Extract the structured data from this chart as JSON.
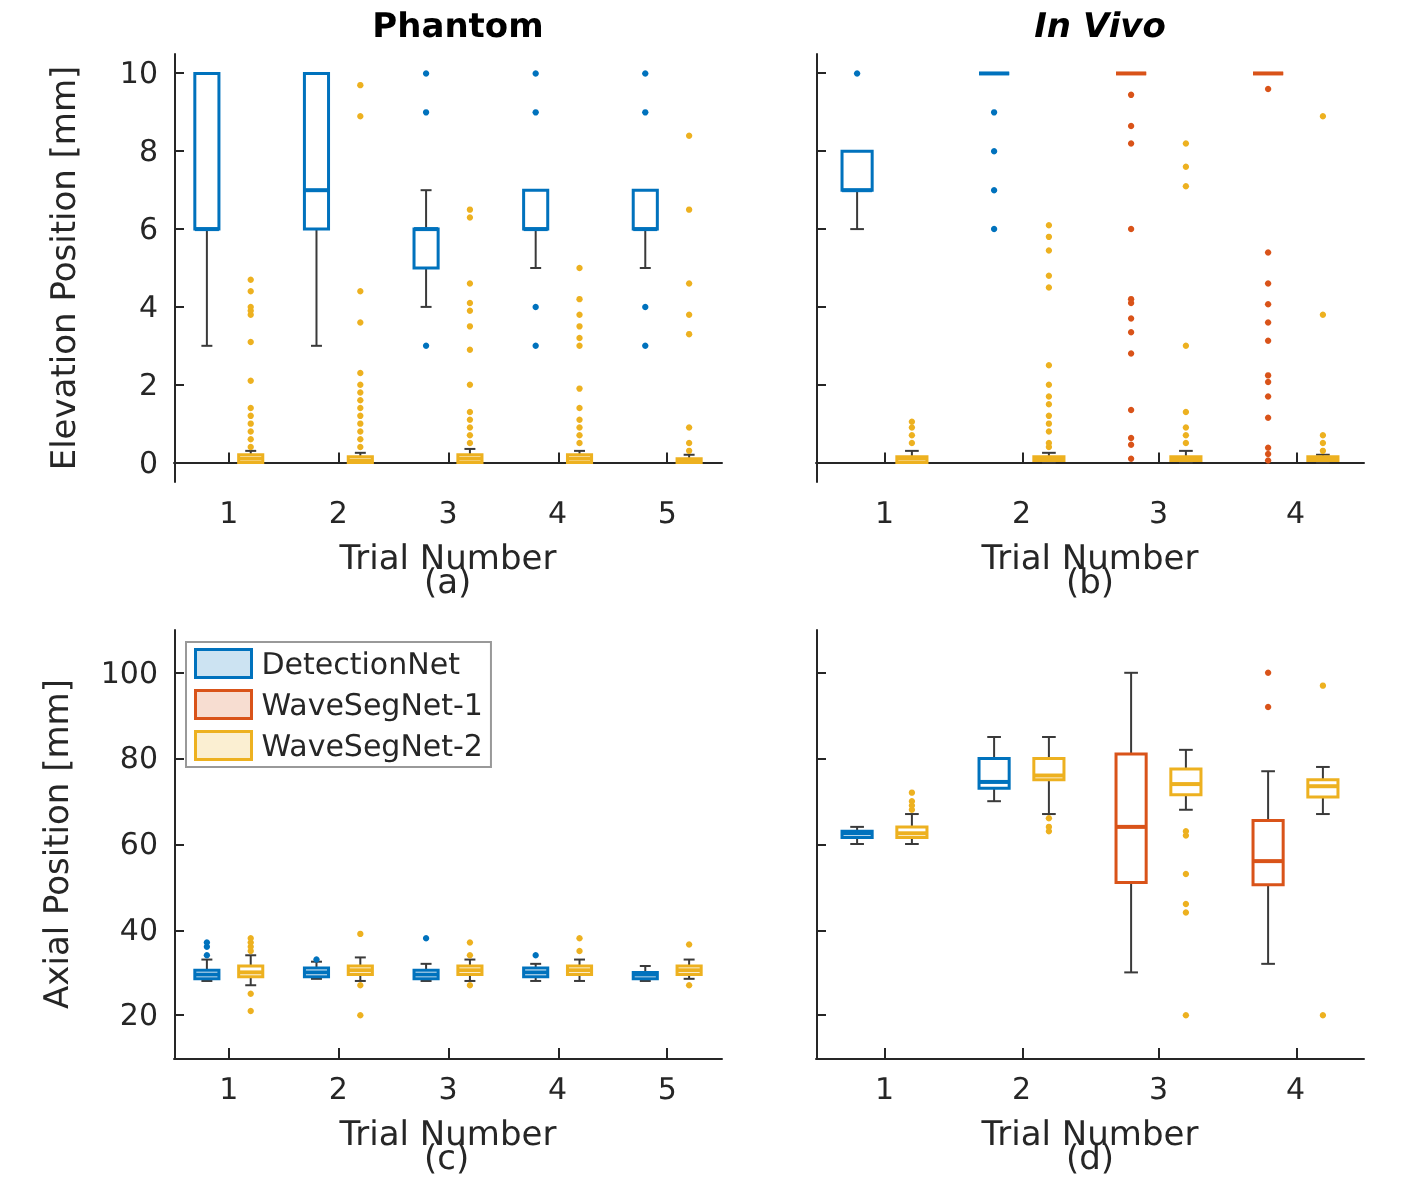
{
  "chart_data": [
    {
      "type": "box",
      "title": "Phantom",
      "xlabel": "Trial Number",
      "ylabel": "Elevation Position [mm]",
      "annotations": [
        "(a)"
      ],
      "categories": [
        "1",
        "2",
        "3",
        "4",
        "5"
      ],
      "ylim": [
        -0.5,
        10.5
      ],
      "yticks": [
        0,
        2,
        4,
        6,
        8,
        10
      ],
      "series": [
        {
          "color": "#0072bd",
          "boxes": [
            {
              "low": 3,
              "q1": 6,
              "median": 6,
              "q3": 10,
              "high": 10
            },
            {
              "low": 3,
              "q1": 6,
              "median": 7,
              "q3": 10,
              "high": 10
            },
            {
              "low": 4,
              "q1": 5,
              "median": 6,
              "q3": 6,
              "high": 7,
              "outliers": [
                3,
                9,
                10
              ]
            },
            {
              "low": 5,
              "q1": 6,
              "median": 6,
              "q3": 7,
              "high": 7,
              "outliers": [
                3,
                4,
                9,
                10
              ]
            },
            {
              "low": 5,
              "q1": 6,
              "median": 6,
              "q3": 7,
              "high": 7,
              "outliers": [
                3,
                4,
                9,
                10
              ]
            }
          ]
        },
        {
          "color": "#edb120",
          "boxes": [
            {
              "low": 0,
              "q1": 0,
              "median": 0.1,
              "q3": 0.2,
              "high": 0.3,
              "outliers": [
                0.4,
                0.6,
                0.8,
                1.0,
                1.2,
                1.4,
                2.1,
                3.1,
                3.8,
                3.9,
                4.0,
                4.4,
                4.7
              ]
            },
            {
              "low": 0,
              "q1": 0,
              "median": 0.05,
              "q3": 0.15,
              "high": 0.25,
              "outliers": [
                0.4,
                0.6,
                0.8,
                1.0,
                1.2,
                1.4,
                1.6,
                1.8,
                2.0,
                2.3,
                3.6,
                4.4,
                8.9,
                9.7
              ]
            },
            {
              "low": 0,
              "q1": 0,
              "median": 0.1,
              "q3": 0.2,
              "high": 0.35,
              "outliers": [
                0.5,
                0.7,
                0.9,
                1.1,
                1.3,
                2.0,
                2.9,
                3.5,
                3.9,
                4.1,
                4.6,
                6.3,
                6.5
              ]
            },
            {
              "low": 0,
              "q1": 0,
              "median": 0.1,
              "q3": 0.2,
              "high": 0.3,
              "outliers": [
                0.5,
                0.7,
                0.9,
                1.1,
                1.4,
                1.9,
                3.0,
                3.2,
                3.5,
                3.8,
                4.2,
                5.0
              ]
            },
            {
              "low": 0,
              "q1": 0,
              "median": 0.05,
              "q3": 0.1,
              "high": 0.2,
              "outliers": [
                0.3,
                0.5,
                0.9,
                3.3,
                3.8,
                4.6,
                6.5,
                8.4
              ]
            }
          ]
        }
      ]
    },
    {
      "type": "box",
      "title": "In Vivo",
      "xlabel": "Trial Number",
      "annotations": [
        "(b)"
      ],
      "categories": [
        "1",
        "2",
        "3",
        "4"
      ],
      "ylim": [
        -0.5,
        10.5
      ],
      "yticks": [
        0,
        2,
        4,
        6,
        8,
        10
      ],
      "tick_labels": "x",
      "series": [
        {
          "color": "#0072bd",
          "boxes": [
            {
              "low": 6,
              "q1": 7,
              "median": 7,
              "q3": 8,
              "high": 8,
              "outliers": [
                10
              ]
            },
            {
              "low": 10,
              "q1": 10,
              "median": 10,
              "q3": 10,
              "high": 10,
              "outliers": [
                6,
                7,
                8,
                9
              ]
            },
            null,
            null
          ]
        },
        {
          "color": "#d95319",
          "boxes": [
            null,
            null,
            {
              "low": 10,
              "q1": 10,
              "median": 10,
              "q3": 10,
              "high": 10,
              "outliers": [
                0.1,
                0.46,
                0.63,
                1.35,
                2.8,
                3.35,
                3.7,
                4.1,
                4.2,
                6.0,
                8.2,
                8.65,
                9.45
              ]
            },
            {
              "low": 10,
              "q1": 10,
              "median": 10,
              "q3": 10,
              "high": 10,
              "outliers": [
                0.05,
                0.22,
                0.38,
                1.15,
                1.7,
                2.07,
                2.24,
                3.13,
                3.6,
                4.07,
                4.6,
                5.4,
                9.6
              ]
            }
          ]
        },
        {
          "color": "#edb120",
          "boxes": [
            {
              "low": 0,
              "q1": 0,
              "median": 0.1,
              "q3": 0.15,
              "high": 0.3,
              "outliers": [
                0.5,
                0.7,
                0.9,
                1.05
              ]
            },
            {
              "low": 0,
              "q1": 0.05,
              "median": 0.1,
              "q3": 0.15,
              "high": 0.25,
              "outliers": [
                0.4,
                0.5,
                0.8,
                1.0,
                1.2,
                1.5,
                1.7,
                2.0,
                2.5,
                4.5,
                4.8,
                5.45,
                5.8,
                6.1
              ]
            },
            {
              "low": 0,
              "q1": 0.05,
              "median": 0.1,
              "q3": 0.15,
              "high": 0.3,
              "outliers": [
                0.5,
                0.7,
                0.9,
                1.3,
                3.0,
                7.1,
                7.6,
                8.2
              ]
            },
            {
              "low": 0,
              "q1": 0.05,
              "median": 0.1,
              "q3": 0.15,
              "high": 0.2,
              "outliers": [
                0.3,
                0.5,
                0.7,
                3.8,
                8.9
              ]
            }
          ]
        }
      ]
    },
    {
      "type": "box",
      "xlabel": "Trial Number",
      "ylabel": "Axial Position [mm]",
      "annotations": [
        "(c)"
      ],
      "categories": [
        "1",
        "2",
        "3",
        "4",
        "5"
      ],
      "ylim": [
        10,
        110
      ],
      "yticks": [
        20,
        40,
        60,
        80,
        100
      ],
      "legend": "top left",
      "series": [
        {
          "name": "DetectionNet",
          "color": "#0072bd",
          "boxes": [
            {
              "low": 28,
              "q1": 28.5,
              "median": 29.5,
              "q3": 30.5,
              "high": 33,
              "outliers": [
                34,
                36,
                37
              ]
            },
            {
              "low": 28.5,
              "q1": 29,
              "median": 30,
              "q3": 31,
              "high": 32.5,
              "outliers": [
                33
              ]
            },
            {
              "low": 28,
              "q1": 28.5,
              "median": 29.5,
              "q3": 30.5,
              "high": 32,
              "outliers": [
                38
              ]
            },
            {
              "low": 28,
              "q1": 29,
              "median": 30,
              "q3": 31,
              "high": 32,
              "outliers": [
                34
              ]
            },
            {
              "low": 28,
              "q1": 28.5,
              "median": 29.5,
              "q3": 30,
              "high": 31.5
            }
          ]
        },
        {
          "name": "WaveSegNet-1",
          "color": "#d95319",
          "boxes": [
            null,
            null,
            null,
            null,
            null
          ]
        },
        {
          "name": "WaveSegNet-2",
          "color": "#edb120",
          "boxes": [
            {
              "low": 27,
              "q1": 29,
              "median": 30,
              "q3": 31.5,
              "high": 34,
              "outliers": [
                21,
                25,
                35,
                36,
                37,
                38
              ]
            },
            {
              "low": 28,
              "q1": 29.5,
              "median": 30.5,
              "q3": 31.5,
              "high": 33.5,
              "outliers": [
                20,
                27,
                39
              ]
            },
            {
              "low": 28,
              "q1": 29.5,
              "median": 30.5,
              "q3": 31.5,
              "high": 33,
              "outliers": [
                27,
                34,
                37
              ]
            },
            {
              "low": 28,
              "q1": 29.5,
              "median": 30.5,
              "q3": 31.5,
              "high": 33,
              "outliers": [
                35,
                38
              ]
            },
            {
              "low": 28.5,
              "q1": 29.5,
              "median": 30.5,
              "q3": 31.5,
              "high": 33,
              "outliers": [
                27,
                36.5
              ]
            }
          ]
        }
      ]
    },
    {
      "type": "box",
      "xlabel": "Trial Number",
      "annotations": [
        "(d)"
      ],
      "categories": [
        "1",
        "2",
        "3",
        "4"
      ],
      "ylim": [
        10,
        110
      ],
      "yticks": [
        20,
        40,
        60,
        80,
        100
      ],
      "tick_labels": "x",
      "series": [
        {
          "color": "#0072bd",
          "boxes": [
            {
              "low": 60,
              "q1": 61.5,
              "median": 62.5,
              "q3": 63,
              "high": 64
            },
            {
              "low": 70,
              "q1": 73,
              "median": 74.5,
              "q3": 80,
              "high": 85
            },
            null,
            null
          ]
        },
        {
          "color": "#d95319",
          "boxes": [
            null,
            null,
            {
              "low": 30,
              "q1": 51,
              "median": 64,
              "q3": 81,
              "high": 100
            },
            {
              "low": 32,
              "q1": 50.5,
              "median": 56,
              "q3": 65.5,
              "high": 77,
              "outliers": [
                92,
                100
              ]
            }
          ]
        },
        {
          "color": "#edb120",
          "boxes": [
            {
              "low": 60,
              "q1": 61.5,
              "median": 62.5,
              "q3": 64,
              "high": 67,
              "outliers": [
                68,
                69,
                70,
                72
              ]
            },
            {
              "low": 67,
              "q1": 75,
              "median": 76,
              "q3": 80,
              "high": 85,
              "outliers": [
                63,
                64,
                66
              ]
            },
            {
              "low": 68,
              "q1": 71.5,
              "median": 74,
              "q3": 77.5,
              "high": 82,
              "outliers": [
                20,
                44,
                46,
                53,
                62,
                63
              ]
            },
            {
              "low": 67,
              "q1": 71,
              "median": 73.5,
              "q3": 75,
              "high": 78,
              "outliers": [
                20,
                97
              ]
            }
          ]
        }
      ]
    }
  ]
}
